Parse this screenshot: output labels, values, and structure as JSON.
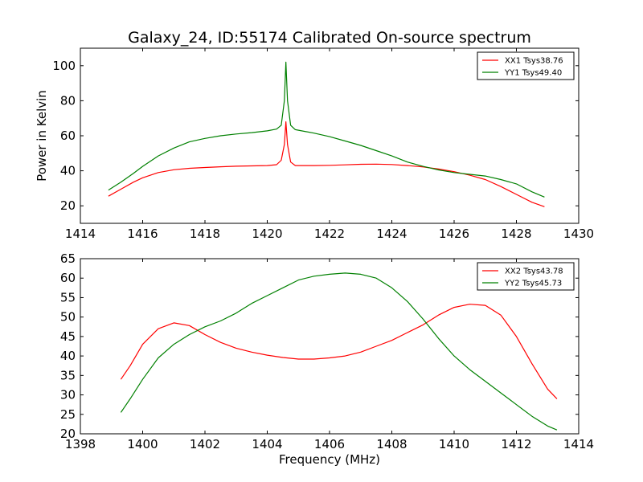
{
  "figure": {
    "title": "Galaxy_24, ID:55174 Calibrated On-source spectrum"
  },
  "chart_data": [
    {
      "type": "line",
      "title": "Galaxy_24, ID:55174 Calibrated On-source spectrum",
      "xlabel": "",
      "ylabel": "Power in Kelvin",
      "xlim": [
        1414,
        1430
      ],
      "ylim": [
        10,
        110
      ],
      "xticks": [
        1414,
        1416,
        1418,
        1420,
        1422,
        1424,
        1426,
        1428,
        1430
      ],
      "yticks": [
        20,
        40,
        60,
        80,
        100
      ],
      "grid": false,
      "legend_position": "top-right",
      "series": [
        {
          "name": "XX1 Tsys38.76",
          "color": "#ff0000",
          "x": [
            1414.9,
            1415.3,
            1415.7,
            1416.0,
            1416.5,
            1417.0,
            1417.5,
            1418.0,
            1418.5,
            1419.0,
            1419.5,
            1420.0,
            1420.3,
            1420.45,
            1420.55,
            1420.6,
            1420.65,
            1420.75,
            1420.9,
            1421.5,
            1422.0,
            1422.5,
            1423.0,
            1423.5,
            1424.0,
            1424.5,
            1425.0,
            1425.5,
            1426.0,
            1426.5,
            1427.0,
            1427.5,
            1428.0,
            1428.5,
            1428.9
          ],
          "y": [
            25.5,
            29.5,
            33.5,
            36.0,
            39.0,
            40.6,
            41.4,
            41.9,
            42.3,
            42.6,
            42.8,
            43.0,
            43.5,
            46.0,
            55.0,
            68.0,
            55.0,
            45.0,
            43.0,
            43.0,
            43.1,
            43.4,
            43.7,
            43.8,
            43.6,
            43.0,
            42.2,
            41.0,
            39.5,
            37.5,
            35.0,
            31.0,
            26.5,
            22.0,
            19.5
          ]
        },
        {
          "name": "YY1 Tsys49.40",
          "color": "#008000",
          "x": [
            1414.9,
            1415.3,
            1415.7,
            1416.0,
            1416.5,
            1417.0,
            1417.5,
            1418.0,
            1418.5,
            1419.0,
            1419.5,
            1420.0,
            1420.3,
            1420.45,
            1420.55,
            1420.6,
            1420.65,
            1420.75,
            1420.9,
            1421.5,
            1422.0,
            1422.5,
            1423.0,
            1423.5,
            1424.0,
            1424.5,
            1425.0,
            1425.5,
            1426.0,
            1426.5,
            1427.0,
            1427.5,
            1428.0,
            1428.5,
            1428.9
          ],
          "y": [
            29.0,
            33.5,
            38.5,
            42.5,
            48.5,
            53.0,
            56.5,
            58.5,
            60.0,
            61.0,
            61.8,
            62.8,
            63.8,
            66.0,
            80.0,
            102.0,
            80.0,
            66.0,
            63.5,
            61.5,
            59.5,
            57.0,
            54.5,
            51.5,
            48.5,
            45.0,
            42.5,
            40.5,
            39.0,
            38.0,
            37.0,
            35.0,
            32.5,
            28.0,
            25.0
          ]
        }
      ]
    },
    {
      "type": "line",
      "title": "",
      "xlabel": "Frequency (MHz)",
      "ylabel": "",
      "xlim": [
        1398,
        1414
      ],
      "ylim": [
        20,
        65
      ],
      "xticks": [
        1398,
        1400,
        1402,
        1404,
        1406,
        1408,
        1410,
        1412,
        1414
      ],
      "yticks": [
        20,
        25,
        30,
        35,
        40,
        45,
        50,
        55,
        60,
        65
      ],
      "grid": false,
      "legend_position": "top-right",
      "series": [
        {
          "name": "XX2 Tsys43.78",
          "color": "#ff0000",
          "x": [
            1399.3,
            1399.6,
            1400.0,
            1400.5,
            1401.0,
            1401.5,
            1402.0,
            1402.5,
            1403.0,
            1403.5,
            1404.0,
            1404.5,
            1405.0,
            1405.5,
            1406.0,
            1406.5,
            1407.0,
            1407.5,
            1408.0,
            1408.5,
            1409.0,
            1409.5,
            1410.0,
            1410.5,
            1411.0,
            1411.5,
            1412.0,
            1412.5,
            1413.0,
            1413.3
          ],
          "y": [
            34.0,
            37.5,
            43.0,
            47.0,
            48.5,
            47.8,
            45.5,
            43.5,
            42.0,
            41.0,
            40.2,
            39.6,
            39.2,
            39.2,
            39.5,
            40.0,
            41.0,
            42.5,
            44.0,
            46.0,
            48.0,
            50.5,
            52.5,
            53.3,
            53.0,
            50.5,
            45.0,
            38.0,
            31.5,
            29.0
          ]
        },
        {
          "name": "YY2 Tsys45.73",
          "color": "#008000",
          "x": [
            1399.3,
            1399.6,
            1400.0,
            1400.5,
            1401.0,
            1401.5,
            1402.0,
            1402.5,
            1403.0,
            1403.5,
            1404.0,
            1404.5,
            1405.0,
            1405.5,
            1406.0,
            1406.5,
            1407.0,
            1407.5,
            1408.0,
            1408.5,
            1409.0,
            1409.5,
            1410.0,
            1410.5,
            1411.0,
            1411.5,
            1412.0,
            1412.5,
            1413.0,
            1413.3
          ],
          "y": [
            25.5,
            29.0,
            34.0,
            39.5,
            43.0,
            45.5,
            47.5,
            49.0,
            51.0,
            53.5,
            55.5,
            57.5,
            59.5,
            60.5,
            61.0,
            61.3,
            61.0,
            60.0,
            57.5,
            54.0,
            49.5,
            44.5,
            40.0,
            36.5,
            33.5,
            30.5,
            27.5,
            24.5,
            22.0,
            21.0
          ]
        }
      ]
    }
  ]
}
